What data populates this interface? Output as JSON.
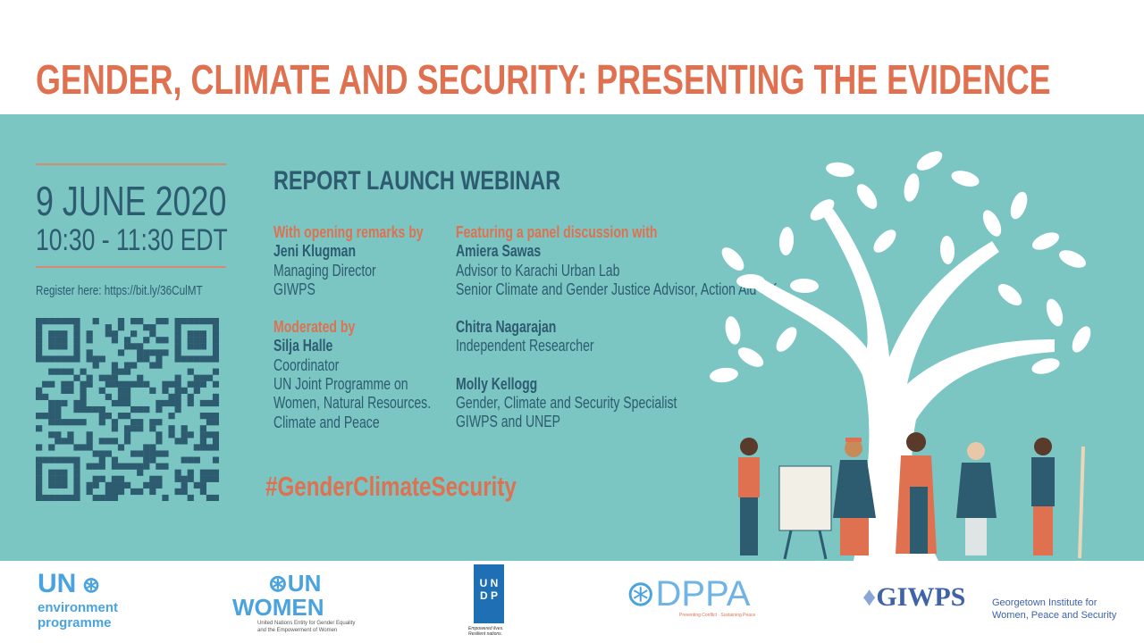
{
  "title": "GENDER, CLIMATE AND SECURITY: PRESENTING THE EVIDENCE",
  "event": {
    "date": "9 JUNE 2020",
    "time": "10:30 - 11:30 EDT",
    "register": "Register here: https://bit.ly/36CulMT",
    "subtitle": "REPORT LAUNCH WEBINAR",
    "hashtag": "#GenderClimateSecurity"
  },
  "left_column": {
    "opening_heading": "With opening remarks by",
    "opening": {
      "name": "Jeni Klugman",
      "lines": [
        "Managing Director",
        "GIWPS"
      ]
    },
    "moderated_heading": "Moderated by",
    "moderator": {
      "name": "Silja Halle",
      "lines": [
        "Coordinator",
        "UN Joint Programme on",
        "Women, Natural Resources.",
        "Climate and Peace"
      ]
    }
  },
  "right_column": {
    "heading": "Featuring a panel discussion with",
    "panelists": [
      {
        "name": "Amiera Sawas",
        "lines": [
          "Advisor to Karachi Urban Lab",
          "Senior Climate and Gender Justice Advisor, Action Aid UK"
        ]
      },
      {
        "name": "Chitra Nagarajan",
        "lines": [
          "Independent Researcher"
        ]
      },
      {
        "name": "Molly Kellogg",
        "lines": [
          "Gender, Climate and Security Specialist",
          "GIWPS and UNEP"
        ]
      }
    ]
  },
  "logos": {
    "unep": {
      "top": "UN",
      "line1": "environment",
      "line2": "programme"
    },
    "unwomen": {
      "top": "UN",
      "main": "WOMEN",
      "caption1": "United Nations Entity for Gender Equality",
      "caption2": "and the Empowerment of Women"
    },
    "undp": {
      "letters": [
        "U",
        "N",
        "D",
        "P"
      ],
      "caption1": "Empowered lives.",
      "caption2": "Resilient nations."
    },
    "dppa": {
      "main": "DPPA",
      "caption": "Preventing Conflict · Sustaining Peace"
    },
    "giwps": {
      "main": "GIWPS",
      "line1": "Georgetown Institute for",
      "line2": "Women, Peace and Security"
    }
  },
  "colors": {
    "panel": "#7bc5c3",
    "accent": "#e07150",
    "text": "#2d5b70",
    "logo_blue": "#4aa3df"
  }
}
